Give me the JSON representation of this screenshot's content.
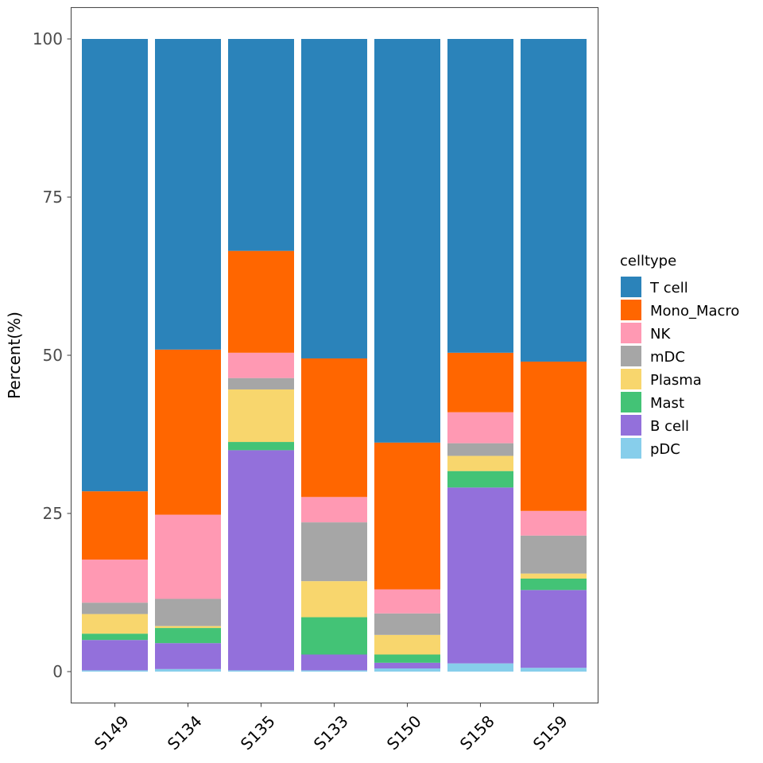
{
  "chart_data": {
    "type": "bar",
    "stacked": true,
    "title": "",
    "xlabel": "",
    "ylabel": "Percent(%)",
    "ylim": [
      0,
      100
    ],
    "yticks": [
      0,
      25,
      50,
      75,
      100
    ],
    "ytick_labels": [
      "0",
      "25",
      "50",
      "75",
      "100"
    ],
    "grid": false,
    "legend_position": "right",
    "legend_title": "celltype",
    "categories": [
      "S149",
      "S134",
      "S135",
      "S133",
      "S150",
      "S158",
      "S159"
    ],
    "series": [
      {
        "name": "T cell",
        "color": "#2B83BA",
        "values": [
          71.5,
          49.1,
          33.5,
          50.5,
          63.8,
          49.6,
          51.0
        ]
      },
      {
        "name": "Mono_Macro",
        "color": "#FF6600",
        "values": [
          10.8,
          26.1,
          16.1,
          21.9,
          23.2,
          9.4,
          23.6
        ]
      },
      {
        "name": "NK",
        "color": "#FF99B3",
        "values": [
          6.8,
          13.3,
          4.0,
          4.0,
          3.8,
          4.9,
          3.9
        ]
      },
      {
        "name": "mDC",
        "color": "#A6A6A6",
        "values": [
          1.8,
          4.3,
          1.8,
          9.3,
          3.4,
          2.0,
          6.0
        ]
      },
      {
        "name": "Plasma",
        "color": "#F8D66D",
        "values": [
          3.1,
          0.3,
          8.3,
          5.7,
          3.1,
          2.4,
          0.8
        ]
      },
      {
        "name": "Mast",
        "color": "#43C376",
        "values": [
          1.0,
          2.4,
          1.3,
          5.9,
          1.3,
          2.6,
          1.8
        ]
      },
      {
        "name": "B cell",
        "color": "#9370DB",
        "values": [
          4.8,
          4.1,
          34.8,
          2.5,
          0.9,
          27.8,
          12.3
        ]
      },
      {
        "name": "pDC",
        "color": "#87CEEB",
        "values": [
          0.2,
          0.4,
          0.2,
          0.2,
          0.5,
          1.3,
          0.6
        ]
      }
    ]
  }
}
